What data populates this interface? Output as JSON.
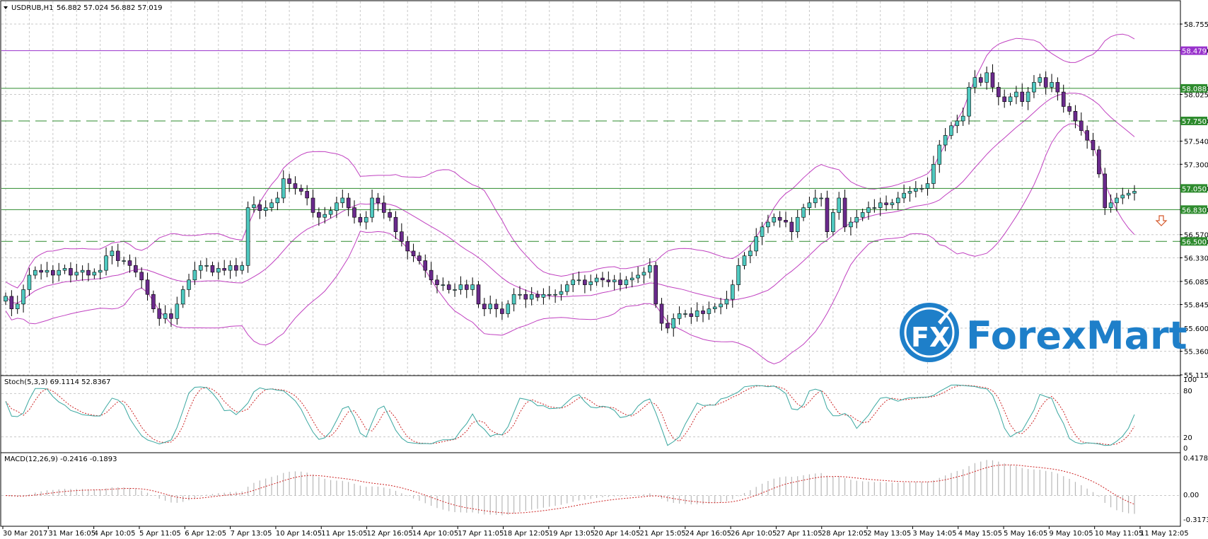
{
  "colors": {
    "background": "#ffffff",
    "grid": "#c8c8c8",
    "bull_candle": "#4fc9c0",
    "bear_candle": "#6a2a8c",
    "bollinger": "#c040c0",
    "resistance_purple": "#9933cc",
    "support_green": "#2e8b2e",
    "stoch_main": "#3aa7a0",
    "stoch_signal": "#cc2222",
    "macd_hist": "#b8b8b8",
    "macd_signal": "#cc2222",
    "brand": "#1e7fc9"
  },
  "header": {
    "symbol_label": "USDRUB,H1",
    "ohlc_label": "56.882 57.024 56.882 57.019"
  },
  "stoch": {
    "label": "Stoch(5,3,3) 69.1114 52.8367",
    "levels": [
      "100",
      "80",
      "20",
      "0"
    ]
  },
  "macd": {
    "label": "MACD(12,26,9) -0.2416 -0.1893",
    "levels": [
      "0.4178",
      "0.00",
      "-0.3173"
    ]
  },
  "brand": {
    "name": "ForexMart",
    "mark": "FX"
  },
  "chart_data": {
    "type": "candlestick",
    "symbol": "USDRUB",
    "timeframe": "H1",
    "ylim": [
      55.115,
      58.99
    ],
    "price_ticks": [
      "58.755",
      "58.479",
      "58.088",
      "58.025",
      "57.750",
      "57.540",
      "57.300",
      "57.050",
      "56.830",
      "56.570",
      "56.500",
      "56.330",
      "56.085",
      "55.845",
      "55.600",
      "55.360",
      "55.115"
    ],
    "x_labels": [
      "30 Mar 2017",
      "31 Mar 16:05",
      "4 Apr 10:05",
      "5 Apr 11:05",
      "6 Apr 12:05",
      "7 Apr 13:05",
      "10 Apr 14:05",
      "11 Apr 15:05",
      "12 Apr 16:05",
      "14 Apr 10:05",
      "17 Apr 11:05",
      "18 Apr 12:05",
      "19 Apr 13:05",
      "20 Apr 14:05",
      "21 Apr 15:05",
      "24 Apr 16:05",
      "26 Apr 10:05",
      "27 Apr 11:05",
      "28 Apr 12:05",
      "2 May 13:05",
      "3 May 14:05",
      "4 May 15:05",
      "5 May 16:05",
      "9 May 10:05",
      "10 May 11:05",
      "11 May 12:05"
    ],
    "closes": [
      55.93,
      55.8,
      55.85,
      56.0,
      56.15,
      56.2,
      56.18,
      56.2,
      56.15,
      56.2,
      56.22,
      56.15,
      56.18,
      56.2,
      56.15,
      56.18,
      56.2,
      56.35,
      56.4,
      56.3,
      56.3,
      56.25,
      56.18,
      56.1,
      55.95,
      55.8,
      55.7,
      55.75,
      55.7,
      55.85,
      56.0,
      56.1,
      56.2,
      56.25,
      56.25,
      56.18,
      56.22,
      56.2,
      56.25,
      56.2,
      56.25,
      56.85,
      56.88,
      56.82,
      56.85,
      56.9,
      56.95,
      57.15,
      57.1,
      57.05,
      57.02,
      56.95,
      56.8,
      56.75,
      56.78,
      56.82,
      56.9,
      56.95,
      56.85,
      56.75,
      56.7,
      56.75,
      56.95,
      56.9,
      56.8,
      56.75,
      56.6,
      56.5,
      56.4,
      56.35,
      56.3,
      56.2,
      56.1,
      56.05,
      56.05,
      56.0,
      56.0,
      56.05,
      56.0,
      56.05,
      55.85,
      55.8,
      55.85,
      55.8,
      55.75,
      55.85,
      55.95,
      55.95,
      55.9,
      55.95,
      55.92,
      55.95,
      55.95,
      55.95,
      55.98,
      56.05,
      56.1,
      56.1,
      56.05,
      56.08,
      56.12,
      56.1,
      56.08,
      56.1,
      56.05,
      56.1,
      56.12,
      56.15,
      56.18,
      56.25,
      55.85,
      55.65,
      55.6,
      55.7,
      55.75,
      55.75,
      55.72,
      55.78,
      55.75,
      55.8,
      55.82,
      55.85,
      55.9,
      56.05,
      56.25,
      56.35,
      56.4,
      56.55,
      56.65,
      56.7,
      56.75,
      56.72,
      56.7,
      56.6,
      56.75,
      56.85,
      56.9,
      56.95,
      56.95,
      56.6,
      56.8,
      56.95,
      56.65,
      56.7,
      56.75,
      56.8,
      56.85,
      56.85,
      56.9,
      56.88,
      56.9,
      56.95,
      57.0,
      57.02,
      57.05,
      57.05,
      57.1,
      57.3,
      57.5,
      57.6,
      57.7,
      57.75,
      57.8,
      58.1,
      58.2,
      58.15,
      58.25,
      58.1,
      58.0,
      57.95,
      58.0,
      58.05,
      57.95,
      58.05,
      58.15,
      58.2,
      58.1,
      58.15,
      58.05,
      57.9,
      57.85,
      57.75,
      57.65,
      57.55,
      57.45,
      57.2,
      56.85,
      56.9,
      56.95,
      56.98,
      57.0,
      57.02
    ],
    "levels": [
      {
        "value": 58.479,
        "label": "58.479",
        "style": "solid",
        "color": "resistance"
      },
      {
        "value": 58.088,
        "label": "58.088",
        "style": "solid",
        "color": "support"
      },
      {
        "value": 57.75,
        "label": "57.750",
        "style": "dashed",
        "color": "support"
      },
      {
        "value": 57.05,
        "label": "57.050",
        "style": "solid",
        "color": "support"
      },
      {
        "value": 56.83,
        "label": "56.830",
        "style": "solid",
        "color": "support"
      },
      {
        "value": 56.5,
        "label": "56.500",
        "style": "dashed",
        "color": "support"
      }
    ],
    "indicators": {
      "bollinger": true,
      "stochastic": {
        "params": "5,3,3",
        "main": 69.1114,
        "signal": 52.8367
      },
      "macd": {
        "params": "12,26,9",
        "main": -0.2416,
        "signal": -0.1893
      }
    },
    "grid": true,
    "legend": "top-left"
  }
}
